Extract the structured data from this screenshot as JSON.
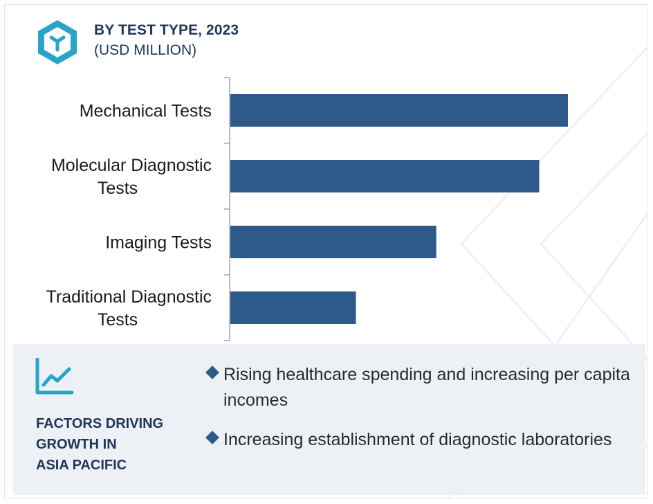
{
  "header": {
    "title": "BY TEST TYPE, 2023",
    "subtitle": "(USD MILLION)",
    "icon": "cube-hexagon-icon"
  },
  "colors": {
    "bar": "#2e5a8a",
    "title": "#1f3558",
    "accent": "#29a3c8",
    "panel_bg": "#edf0f5"
  },
  "chart_data": {
    "type": "bar",
    "orientation": "horizontal",
    "title": "BY TEST TYPE, 2023",
    "subtitle": "(USD MILLION)",
    "categories": [
      "Mechanical Tests",
      "Molecular Diagnostic Tests",
      "Imaging Tests",
      "Traditional Diagnostic Tests"
    ],
    "values": [
      100,
      91.5,
      61,
      37.2
    ],
    "value_axis_visible": false,
    "grid": false,
    "legend": "none"
  },
  "factors": {
    "icon": "trend-line-chart-icon",
    "title_lines": [
      "FACTORS DRIVING",
      "GROWTH IN",
      "ASIA PACIFIC"
    ],
    "items": [
      "Rising healthcare spending and increasing per capita incomes",
      "Increasing establishment of diagnostic laboratories"
    ]
  }
}
